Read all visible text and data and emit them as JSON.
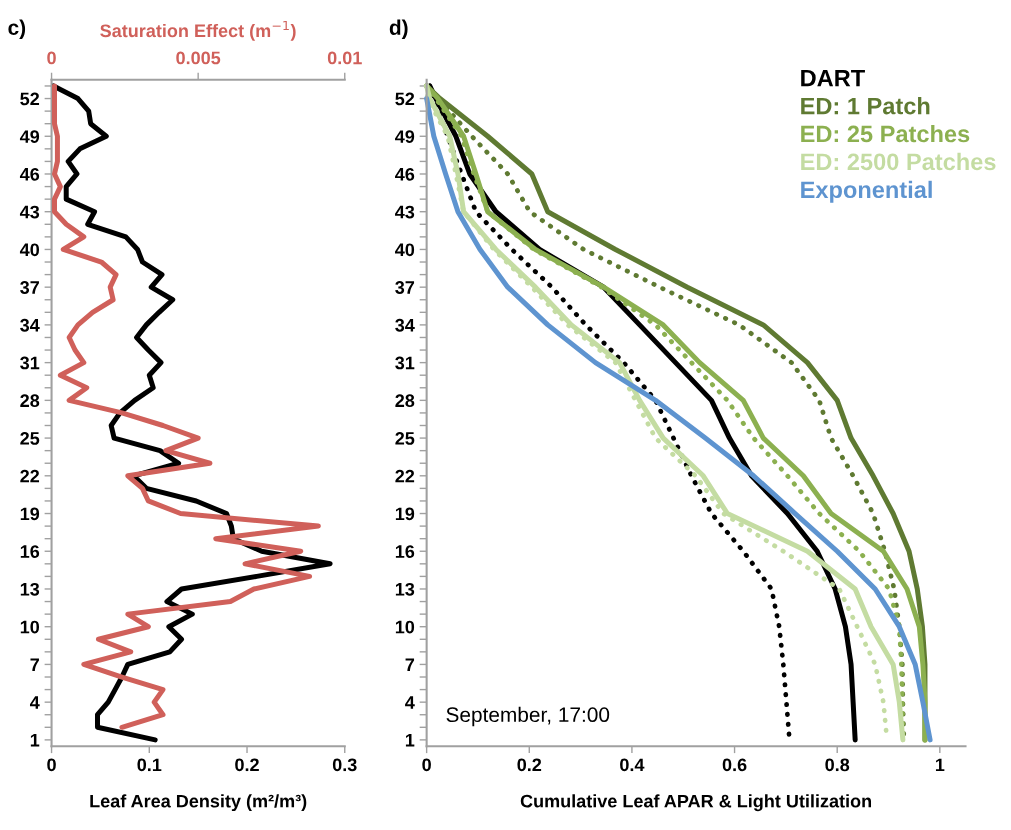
{
  "chart_data": [
    {
      "type": "line",
      "title": "c)",
      "xlabel": "Leaf Area Density (m²/m³)",
      "x2label": "Saturation Effect (m$^{−1}$)",
      "xlim": [
        0,
        0.3
      ],
      "xticks": [
        0,
        0.1,
        0.2,
        0.3
      ],
      "x2lim": [
        0,
        0.01
      ],
      "x2ticks": [
        0,
        0.005,
        0.01
      ],
      "ylim": [
        0.5,
        53.5
      ],
      "yticks": [
        1,
        {
          "value": 2,
          "label": null
        },
        {
          "value": 3,
          "label": null
        },
        4,
        {
          "value": 5,
          "label": null
        },
        {
          "value": 6,
          "label": null
        },
        7,
        {
          "value": 8,
          "label": null
        },
        {
          "value": 9,
          "label": null
        },
        10,
        {
          "value": 11,
          "label": null
        },
        {
          "value": 12,
          "label": null
        },
        13,
        {
          "value": 14,
          "label": null
        },
        {
          "value": 15,
          "label": null
        },
        16,
        {
          "value": 17,
          "label": null
        },
        {
          "value": 18,
          "label": null
        },
        19,
        {
          "value": 20,
          "label": null
        },
        {
          "value": 21,
          "label": null
        },
        22,
        {
          "value": 23,
          "label": null
        },
        {
          "value": 24,
          "label": null
        },
        25,
        {
          "value": 26,
          "label": null
        },
        {
          "value": 27,
          "label": null
        },
        28,
        {
          "value": 29,
          "label": null
        },
        {
          "value": 30,
          "label": null
        },
        31,
        {
          "value": 32,
          "label": null
        },
        {
          "value": 33,
          "label": null
        },
        34,
        {
          "value": 35,
          "label": null
        },
        {
          "value": 36,
          "label": null
        },
        37,
        {
          "value": 38,
          "label": null
        },
        {
          "value": 39,
          "label": null
        },
        40,
        {
          "value": 41,
          "label": null
        },
        {
          "value": 42,
          "label": null
        },
        43,
        {
          "value": 44,
          "label": null
        },
        {
          "value": 45,
          "label": null
        },
        46,
        {
          "value": 47,
          "label": null
        },
        {
          "value": 48,
          "label": null
        },
        49,
        {
          "value": 50,
          "label": null
        },
        {
          "value": 51,
          "label": null
        },
        52,
        {
          "value": 53,
          "label": null
        }
      ],
      "grid": false,
      "marker": "none",
      "line_style": "solid",
      "series": [
        {
          "color": "#000000",
          "x": [
            0.002,
            0.027,
            0.038,
            0.04,
            0.056,
            0.029,
            0.017,
            0.026,
            0.015,
            0.015,
            0.044,
            0.037,
            0.076,
            0.088,
            0.093,
            0.113,
            0.102,
            0.124,
            0.11,
            0.097,
            0.087,
            0.099,
            0.112,
            0.1,
            0.104,
            0.085,
            0.07,
            0.061,
            0.064,
            0.111,
            0.13,
            0.084,
            0.097,
            0.148,
            0.179,
            0.184,
            0.186,
            0.215,
            0.285,
            0.21,
            0.133,
            0.118,
            0.144,
            0.12,
            0.133,
            0.121,
            0.078,
            0.072,
            0.065,
            0.058,
            0.047,
            0.047,
            0.106
          ],
          "values": [
            53,
            52,
            51,
            50,
            49,
            48,
            47,
            46,
            45,
            44,
            43,
            42,
            41,
            40,
            39,
            38,
            37,
            36,
            35,
            34,
            33,
            32,
            31,
            30,
            29,
            28,
            27,
            26,
            25,
            24,
            23,
            22,
            21,
            20,
            19,
            18,
            17,
            16,
            15,
            14,
            13,
            12,
            11,
            10,
            9,
            8,
            7,
            6,
            5,
            4,
            3,
            2,
            1
          ]
        },
        {
          "color": "#d0605a",
          "axis": "x2",
          "x": [
            0.0001,
            0.0001,
            0.0001,
            0.0001,
            0.0002,
            0.0002,
            0.0002,
            0.0001,
            0.0003,
            0.0001,
            0.0001,
            0.0005,
            0.0011,
            0.0004,
            0.0017,
            0.0022,
            0.002,
            0.0021,
            0.0014,
            0.0009,
            0.0006,
            0.0008,
            0.0011,
            0.0003,
            0.0012,
            0.0006,
            0.0024,
            0.0038,
            0.005,
            0.0039,
            0.0054,
            0.0026,
            0.0031,
            0.0033,
            0.0044,
            0.0091,
            0.0056,
            0.0085,
            0.0066,
            0.0088,
            0.0069,
            0.0061,
            0.0026,
            0.0033,
            0.0016,
            0.0027,
            0.0011,
            0.0024,
            0.0038,
            0.0035,
            0.0038,
            0.0024
          ],
          "values": [
            53,
            52,
            51,
            50,
            49,
            48,
            47,
            46,
            45,
            44,
            43,
            42,
            41,
            40,
            39,
            38,
            37,
            36,
            35,
            34,
            33,
            32,
            31,
            30,
            29,
            28,
            27,
            26,
            25,
            24,
            23,
            22,
            21,
            20,
            19,
            18,
            17,
            16,
            15,
            14,
            13,
            12,
            11,
            10,
            9,
            8,
            7,
            6,
            5,
            4,
            3,
            2
          ]
        }
      ]
    },
    {
      "type": "line",
      "title": "d)",
      "xlabel": "Cumulative Leaf APAR & Light Utilization",
      "annotations": [
        "September, 17:00"
      ],
      "xlim": [
        0,
        1.05
      ],
      "xticks": [
        0,
        0.2,
        0.4,
        0.6,
        0.8,
        1
      ],
      "ylim": [
        0.5,
        53.5
      ],
      "yticks": [
        1,
        {
          "value": 2,
          "label": null
        },
        {
          "value": 3,
          "label": null
        },
        4,
        {
          "value": 5,
          "label": null
        },
        {
          "value": 6,
          "label": null
        },
        7,
        {
          "value": 8,
          "label": null
        },
        {
          "value": 9,
          "label": null
        },
        10,
        {
          "value": 11,
          "label": null
        },
        {
          "value": 12,
          "label": null
        },
        13,
        {
          "value": 14,
          "label": null
        },
        {
          "value": 15,
          "label": null
        },
        16,
        {
          "value": 17,
          "label": null
        },
        {
          "value": 18,
          "label": null
        },
        19,
        {
          "value": 20,
          "label": null
        },
        {
          "value": 21,
          "label": null
        },
        22,
        {
          "value": 23,
          "label": null
        },
        {
          "value": 24,
          "label": null
        },
        25,
        {
          "value": 26,
          "label": null
        },
        {
          "value": 27,
          "label": null
        },
        28,
        {
          "value": 29,
          "label": null
        },
        {
          "value": 30,
          "label": null
        },
        31,
        {
          "value": 32,
          "label": null
        },
        {
          "value": 33,
          "label": null
        },
        34,
        {
          "value": 35,
          "label": null
        },
        {
          "value": 36,
          "label": null
        },
        37,
        {
          "value": 38,
          "label": null
        },
        {
          "value": 39,
          "label": null
        },
        40,
        {
          "value": 41,
          "label": null
        },
        {
          "value": 42,
          "label": null
        },
        43,
        {
          "value": 44,
          "label": null
        },
        {
          "value": 45,
          "label": null
        },
        46,
        {
          "value": 47,
          "label": null
        },
        {
          "value": 48,
          "label": null
        },
        49,
        {
          "value": 50,
          "label": null
        },
        {
          "value": 51,
          "label": null
        },
        52,
        {
          "value": 53,
          "label": null
        }
      ],
      "grid": false,
      "legend": "top right",
      "marker": "none",
      "series": [
        {
          "name": "DART",
          "color": "#000000",
          "line_style": "solid",
          "x": [
            0.006,
            0.018,
            0.057,
            0.084,
            0.135,
            0.22,
            0.345,
            0.415,
            0.485,
            0.555,
            0.59,
            0.633,
            0.703,
            0.761,
            0.796,
            0.816,
            0.827,
            0.831,
            0.835
          ],
          "values": [
            53,
            52,
            49,
            46,
            43,
            40,
            37,
            34,
            31,
            28,
            25,
            22,
            19,
            16,
            13,
            10,
            7,
            4,
            1
          ]
        },
        {
          "color": "#000000",
          "line_style": "dotted",
          "x": [
            0.006,
            0.014,
            0.041,
            0.068,
            0.096,
            0.166,
            0.244,
            0.31,
            0.384,
            0.446,
            0.481,
            0.516,
            0.555,
            0.617,
            0.672,
            0.687,
            0.695,
            0.701,
            0.707
          ],
          "values": [
            53,
            52,
            49,
            46,
            43,
            40,
            37,
            34,
            31,
            28,
            25,
            22,
            19,
            16,
            13,
            10,
            7,
            4,
            1
          ]
        },
        {
          "name": "ED: 1 Patch",
          "color": "#5f7a32",
          "line_style": "solid",
          "x": [
            0,
            0.026,
            0.119,
            0.205,
            0.236,
            0.368,
            0.508,
            0.656,
            0.742,
            0.8,
            0.827,
            0.87,
            0.909,
            0.94,
            0.956,
            0.966,
            0.971,
            0.971,
            0.971
          ],
          "values": [
            53,
            52,
            49,
            46,
            43,
            40,
            37,
            34,
            31,
            28,
            25,
            22,
            19,
            16,
            13,
            10,
            7,
            4,
            1
          ]
        },
        {
          "color": "#5f7a32",
          "line_style": "dotted",
          "x": [
            0,
            0.022,
            0.088,
            0.158,
            0.201,
            0.306,
            0.454,
            0.609,
            0.711,
            0.765,
            0.788,
            0.831,
            0.87,
            0.893,
            0.911,
            0.921,
            0.927,
            0.928,
            0.93
          ],
          "values": [
            53,
            52,
            49,
            46,
            43,
            40,
            37,
            34,
            31,
            28,
            25,
            22,
            19,
            16,
            13,
            10,
            7,
            4,
            1
          ]
        },
        {
          "name": "ED: 25 Patches",
          "color": "#8cb050",
          "line_style": "solid",
          "x": [
            0,
            0.022,
            0.072,
            0.096,
            0.119,
            0.212,
            0.345,
            0.461,
            0.532,
            0.617,
            0.656,
            0.734,
            0.788,
            0.89,
            0.936,
            0.96,
            0.967,
            0.971,
            0.971
          ],
          "values": [
            53,
            52,
            49,
            46,
            43,
            40,
            37,
            34,
            31,
            28,
            25,
            22,
            19,
            16,
            13,
            10,
            7,
            4,
            1
          ]
        },
        {
          "color": "#8cb050",
          "line_style": "dotted",
          "x": [
            0,
            0.018,
            0.068,
            0.092,
            0.119,
            0.209,
            0.341,
            0.446,
            0.516,
            0.586,
            0.637,
            0.703,
            0.765,
            0.843,
            0.901,
            0.921,
            0.925,
            0.927,
            0.928
          ],
          "values": [
            53,
            52,
            49,
            46,
            43,
            40,
            37,
            34,
            31,
            28,
            25,
            22,
            19,
            16,
            13,
            10,
            7,
            4,
            1
          ]
        },
        {
          "name": "ED: 2500 Patches",
          "color": "#c4dca2",
          "line_style": "solid",
          "x": [
            0,
            0.006,
            0.045,
            0.061,
            0.072,
            0.135,
            0.212,
            0.282,
            0.376,
            0.415,
            0.461,
            0.539,
            0.586,
            0.742,
            0.835,
            0.866,
            0.909,
            0.921,
            0.928
          ],
          "values": [
            53,
            52,
            49,
            46,
            43,
            40,
            37,
            34,
            31,
            28,
            25,
            22,
            19,
            16,
            13,
            10,
            7,
            4,
            1
          ]
        },
        {
          "color": "#c4dca2",
          "line_style": "dotted",
          "x": [
            0,
            0.002,
            0.041,
            0.057,
            0.072,
            0.131,
            0.205,
            0.275,
            0.368,
            0.407,
            0.446,
            0.524,
            0.578,
            0.695,
            0.804,
            0.839,
            0.874,
            0.89,
            0.897
          ],
          "values": [
            53,
            52,
            49,
            46,
            43,
            40,
            37,
            34,
            31,
            28,
            25,
            22,
            19,
            16,
            13,
            10,
            7,
            4,
            1
          ]
        },
        {
          "name": "Exponential",
          "color": "#5e94d0",
          "line_style": "solid",
          "x": [
            0,
            0.014,
            0.037,
            0.061,
            0.104,
            0.158,
            0.236,
            0.329,
            0.446,
            0.543,
            0.637,
            0.718,
            0.8,
            0.874,
            0.921,
            0.952,
            0.967,
            0.981
          ],
          "values": [
            52,
            49,
            46,
            43,
            40,
            37,
            34,
            31,
            28,
            25,
            22,
            19,
            16,
            13,
            10,
            7,
            4,
            1
          ]
        }
      ]
    }
  ]
}
